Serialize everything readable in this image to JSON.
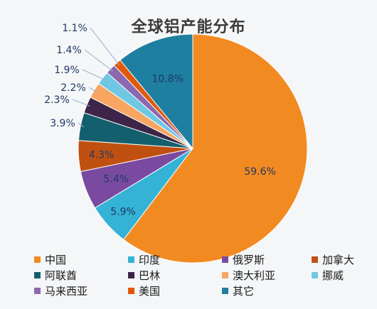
{
  "chart_data": {
    "type": "pie",
    "title": "全球铝产能分布",
    "categories": [
      "中国",
      "印度",
      "俄罗斯",
      "加拿大",
      "阿联酋",
      "巴林",
      "澳大利亚",
      "挪威",
      "马来西亚",
      "美国",
      "其它"
    ],
    "values": [
      59.6,
      5.9,
      5.4,
      4.3,
      3.9,
      2.3,
      2.2,
      1.9,
      1.4,
      1.1,
      10.8
    ],
    "value_labels": [
      "59.6%",
      "5.9%",
      "5.4%",
      "4.3%",
      "3.9%",
      "2.3%",
      "2.2%",
      "1.9%",
      "1.4%",
      "1.1%",
      "10.8%"
    ],
    "colors": [
      "#f28a22",
      "#34b3d6",
      "#7a4aa0",
      "#c0500f",
      "#145f6e",
      "#3c2548",
      "#f7a560",
      "#6fc8e3",
      "#8c68b0",
      "#e0590a",
      "#1f7fa0"
    ],
    "legend_position": "bottom"
  }
}
